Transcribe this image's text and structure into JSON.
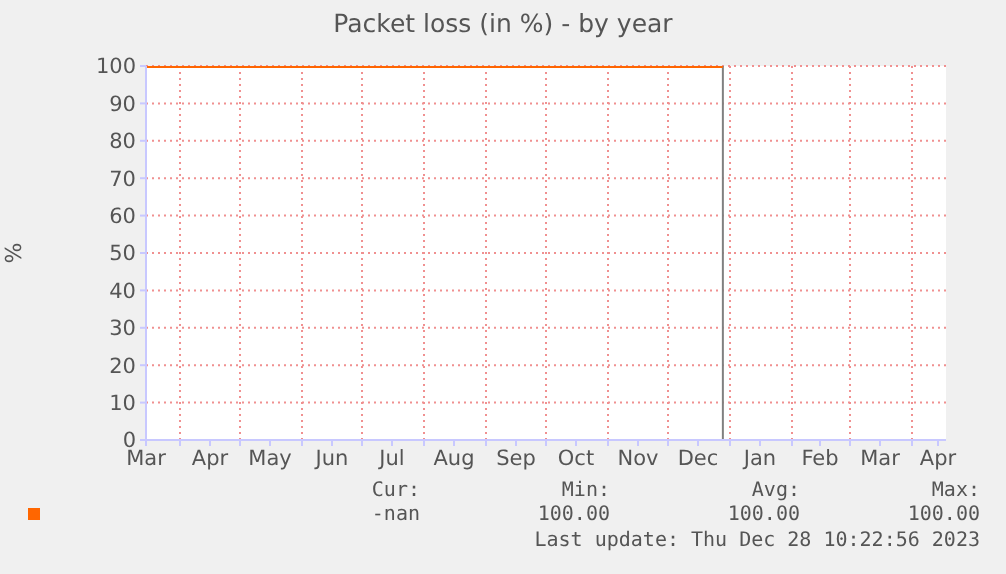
{
  "chart_data": {
    "type": "line",
    "title": "Packet loss (in %) - by year",
    "ylabel": "%",
    "series": [
      {
        "color": "#ff6600",
        "x": [
          "2023-03-15",
          "2023-12-28T10:22"
        ],
        "values": [
          100,
          100
        ]
      }
    ],
    "xlim": [
      "2023-03-15",
      "2024-04-18"
    ],
    "xticks": [
      {
        "value": "2023-03-15",
        "label": "Mar"
      },
      {
        "value": "2023-04-01",
        "label": null
      },
      {
        "value": "2023-04-16",
        "label": "Apr"
      },
      {
        "value": "2023-05-01",
        "label": null
      },
      {
        "value": "2023-05-16",
        "label": "May"
      },
      {
        "value": "2023-06-01",
        "label": null
      },
      {
        "value": "2023-06-16",
        "label": "Jun"
      },
      {
        "value": "2023-07-01",
        "label": null
      },
      {
        "value": "2023-07-16",
        "label": "Jul"
      },
      {
        "value": "2023-08-01",
        "label": null
      },
      {
        "value": "2023-08-16",
        "label": "Aug"
      },
      {
        "value": "2023-09-01",
        "label": null
      },
      {
        "value": "2023-09-16",
        "label": "Sep"
      },
      {
        "value": "2023-10-01",
        "label": null
      },
      {
        "value": "2023-10-16",
        "label": "Oct"
      },
      {
        "value": "2023-11-01",
        "label": null
      },
      {
        "value": "2023-11-16",
        "label": "Nov"
      },
      {
        "value": "2023-12-01",
        "label": null
      },
      {
        "value": "2023-12-16",
        "label": "Dec"
      },
      {
        "value": "2024-01-01",
        "label": null
      },
      {
        "value": "2024-01-16",
        "label": "Jan"
      },
      {
        "value": "2024-02-01",
        "label": null
      },
      {
        "value": "2024-02-15",
        "label": "Feb"
      },
      {
        "value": "2024-03-01",
        "label": null
      },
      {
        "value": "2024-03-16",
        "label": "Mar"
      },
      {
        "value": "2024-04-01",
        "label": null
      },
      {
        "value": "2024-04-14",
        "label": "Apr"
      }
    ],
    "ylim": [
      0,
      100
    ],
    "yticks": [
      0,
      10,
      20,
      30,
      40,
      50,
      60,
      70,
      80,
      90,
      100
    ],
    "grid": true,
    "marker": "none",
    "line_style": "solid",
    "ref_lines": [
      {
        "axis": "x",
        "value": "2023-12-28T10:22",
        "color": "#808080"
      }
    ],
    "annotations": [
      "Cur:",
      "Min:",
      "Avg:",
      "Max:",
      "-nan",
      "100.00",
      "100.00",
      "100.00",
      "Last update: Thu Dec 28 10:22:56 2023"
    ]
  }
}
